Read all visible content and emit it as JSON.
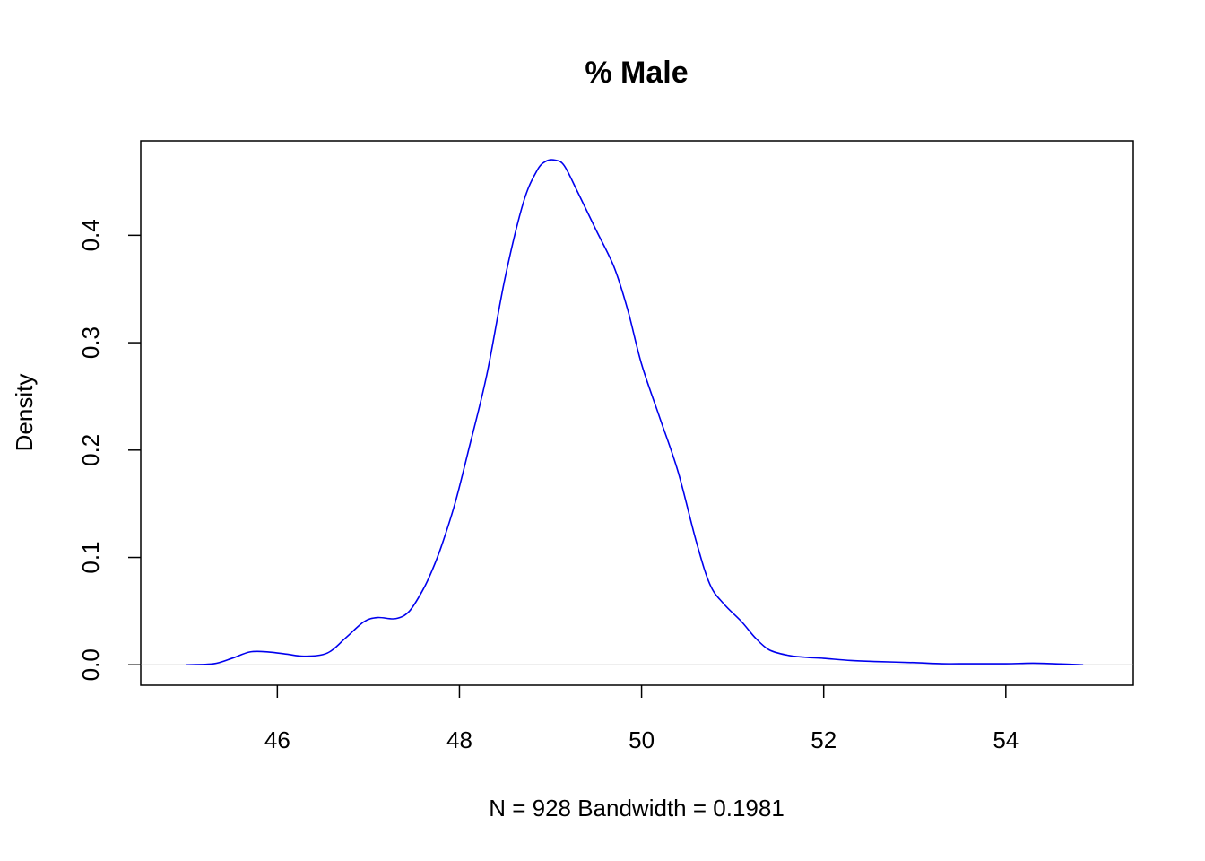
{
  "chart_data": {
    "type": "line",
    "title": "% Male",
    "xlabel": "N = 928   Bandwidth = 0.1981",
    "ylabel": "Density",
    "xlim": [
      44.5,
      55.4
    ],
    "ylim": [
      -0.019,
      0.488
    ],
    "x_ticks": [
      46,
      48,
      50,
      52,
      54
    ],
    "x_tick_labels": [
      "46",
      "48",
      "50",
      "52",
      "54"
    ],
    "y_ticks": [
      0.0,
      0.1,
      0.2,
      0.3,
      0.4
    ],
    "y_tick_labels": [
      "0.0",
      "0.1",
      "0.2",
      "0.3",
      "0.4"
    ],
    "grid": false,
    "baseline": 0,
    "colors": {
      "line": "#0000ee",
      "baseline": "#bebebe",
      "axes": "#000000"
    },
    "series": [
      {
        "x": [
          45.0,
          45.3,
          45.5,
          45.7,
          45.9,
          46.1,
          46.3,
          46.55,
          46.75,
          46.95,
          47.1,
          47.3,
          47.45,
          47.6,
          47.7,
          47.8,
          47.95,
          48.1,
          48.3,
          48.5,
          48.7,
          48.85,
          48.95,
          49.05,
          49.15,
          49.3,
          49.5,
          49.7,
          49.85,
          50.0,
          50.2,
          50.4,
          50.6,
          50.75,
          50.9,
          51.1,
          51.25,
          51.4,
          51.6,
          51.8,
          52.0,
          52.3,
          52.6,
          53.0,
          53.3,
          53.6,
          54.0,
          54.3,
          54.6,
          54.85
        ],
        "y": [
          0.0,
          0.001,
          0.006,
          0.012,
          0.012,
          0.01,
          0.008,
          0.011,
          0.025,
          0.04,
          0.044,
          0.043,
          0.05,
          0.07,
          0.088,
          0.11,
          0.15,
          0.2,
          0.27,
          0.36,
          0.43,
          0.46,
          0.469,
          0.47,
          0.465,
          0.44,
          0.405,
          0.37,
          0.33,
          0.28,
          0.23,
          0.18,
          0.115,
          0.075,
          0.057,
          0.04,
          0.025,
          0.014,
          0.009,
          0.007,
          0.006,
          0.004,
          0.003,
          0.002,
          0.001,
          0.001,
          0.001,
          0.0015,
          0.0008,
          0.0
        ]
      }
    ]
  }
}
